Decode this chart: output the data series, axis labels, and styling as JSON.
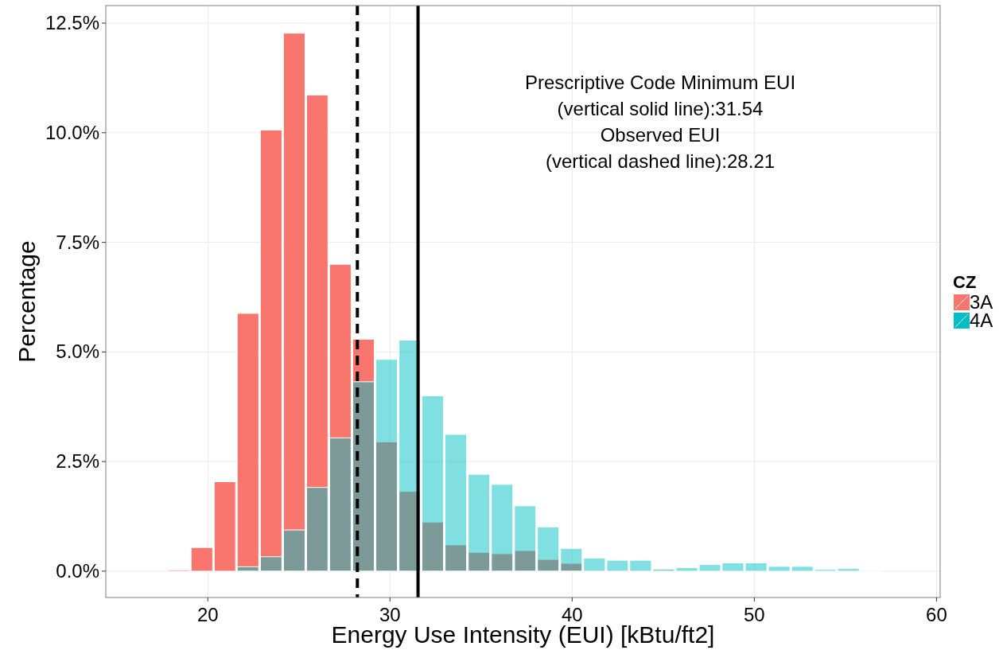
{
  "chart_data": {
    "type": "histogram",
    "xlabel": "Energy Use Intensity (EUI) [kBtu/ft2]",
    "ylabel": "Percentage",
    "legend_title": "CZ",
    "legend": "right",
    "grid": true,
    "bins": [
      17.77,
      19.04,
      20.31,
      21.57,
      22.84,
      24.11,
      25.38,
      26.64,
      27.91,
      29.18,
      30.45,
      31.71,
      32.98,
      34.25,
      35.52,
      36.79,
      38.05,
      39.32,
      40.59,
      41.86,
      43.12,
      44.39,
      45.66,
      46.93,
      48.19,
      49.46,
      50.73,
      52.0,
      53.27,
      54.53,
      55.8,
      57.07
    ],
    "series": [
      {
        "name": "3A",
        "color": "#f8766d",
        "values": [
          0.03,
          0.54,
          2.04,
          5.88,
          10.06,
          12.27,
          10.86,
          7.0,
          5.29,
          2.95,
          1.82,
          1.12,
          0.6,
          0.43,
          0.4,
          0.47,
          0.27,
          0.18,
          0.02,
          0.02,
          0.02,
          0.03,
          0,
          0,
          0,
          0,
          0,
          0,
          0,
          0,
          0
        ]
      },
      {
        "name": "4A",
        "color": "#00bfc4",
        "values": [
          0,
          0,
          0,
          0.1,
          0.33,
          0.94,
          1.91,
          3.04,
          4.32,
          4.83,
          5.27,
          4.0,
          3.12,
          2.21,
          1.98,
          1.49,
          1.01,
          0.52,
          0.3,
          0.25,
          0.25,
          0.05,
          0.08,
          0.15,
          0.19,
          0.19,
          0.11,
          0.11,
          0.04,
          0.06,
          0.02
        ]
      }
    ],
    "xlim": [
      14.4,
      60.2
    ],
    "xticks": [
      20,
      30,
      40,
      50,
      60
    ],
    "ylim": [
      -0.6,
      12.9
    ],
    "yticks": [
      {
        "value": 0,
        "label": "0.0%"
      },
      {
        "value": 2.5,
        "label": "2.5%"
      },
      {
        "value": 5,
        "label": "5.0%"
      },
      {
        "value": 7.5,
        "label": "7.5%"
      },
      {
        "value": 10,
        "label": "10.0%"
      },
      {
        "value": 12.5,
        "label": "12.5%"
      }
    ],
    "ref_lines": [
      {
        "axis": "x",
        "value": 28.21,
        "line_style": "dashed",
        "color": "#000000"
      },
      {
        "axis": "x",
        "value": 31.54,
        "line_style": "solid",
        "color": "#000000"
      }
    ],
    "annotations": [
      "Prescriptive Code Minimum EUI",
      "(vertical solid line):31.54",
      "Observed EUI",
      "(vertical dashed line):28.21"
    ]
  }
}
